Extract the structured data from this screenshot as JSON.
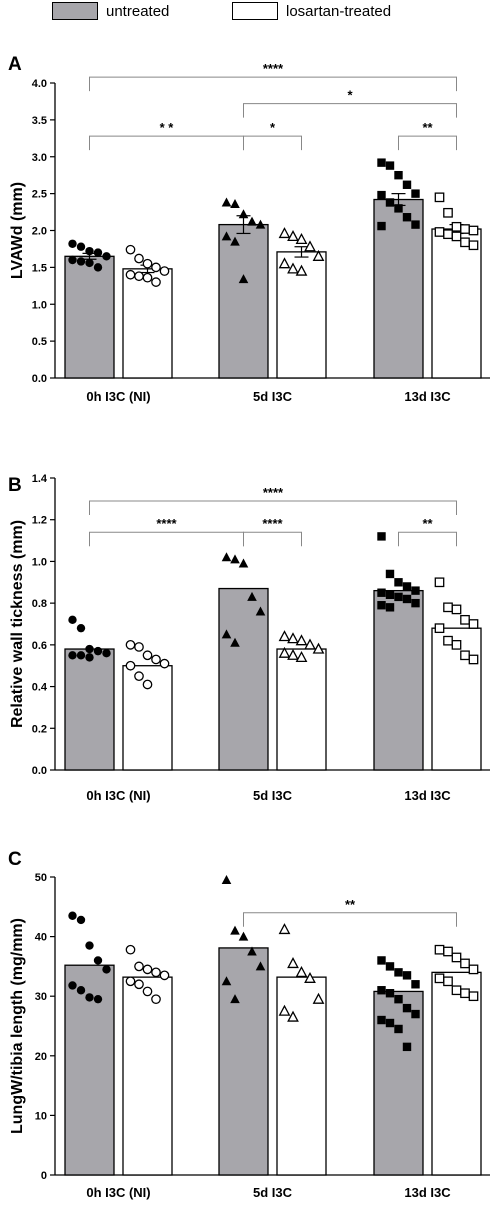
{
  "legend": {
    "items": [
      {
        "label": "untreated",
        "color": "#a7a6ab"
      },
      {
        "label": "losartan-treated",
        "color": "#ffffff"
      }
    ]
  },
  "chart_data": [
    {
      "type": "bar",
      "panel_label": "A",
      "title": "",
      "ylabel": "LVAWd (mm)",
      "xlabel": "",
      "categories": [
        "0h I3C (NI)",
        "5d I3C",
        "13d I3C"
      ],
      "ylim": [
        0,
        4.0
      ],
      "yticks": [
        "0.0",
        "0.5",
        "1.0",
        "1.5",
        "2.0",
        "2.5",
        "3.0",
        "3.5",
        "4.0"
      ],
      "grid": false,
      "series": [
        {
          "name": "untreated",
          "color": "#a7a6ab",
          "values": [
            1.65,
            2.08,
            2.42
          ],
          "sem": [
            0.04,
            0.12,
            0.08
          ],
          "markers": [
            "circle",
            "triangle",
            "square"
          ],
          "points": [
            [
              1.82,
              1.78,
              1.72,
              1.7,
              1.65,
              1.6,
              1.58,
              1.56,
              1.5
            ],
            [
              2.38,
              2.36,
              2.22,
              2.12,
              2.08,
              1.92,
              1.85,
              1.34
            ],
            [
              2.92,
              2.88,
              2.75,
              2.62,
              2.5,
              2.48,
              2.38,
              2.3,
              2.18,
              2.08,
              2.06
            ]
          ]
        },
        {
          "name": "losartan-treated",
          "color": "#ffffff",
          "values": [
            1.48,
            1.71,
            2.02
          ],
          "sem": [
            0.05,
            0.07,
            0.06
          ],
          "markers": [
            "circle",
            "triangle",
            "square"
          ],
          "points": [
            [
              1.74,
              1.62,
              1.55,
              1.5,
              1.45,
              1.4,
              1.38,
              1.36,
              1.3
            ],
            [
              1.96,
              1.92,
              1.88,
              1.78,
              1.65,
              1.55,
              1.48,
              1.45
            ],
            [
              2.45,
              2.24,
              2.05,
              2.02,
              2.0,
              1.98,
              1.95,
              1.92,
              1.84,
              1.8
            ]
          ]
        }
      ],
      "significance": [
        {
          "from": 0,
          "to": 5,
          "label": "****",
          "level": 4.08
        },
        {
          "from": 2,
          "to": 5,
          "label": "*",
          "level": 3.72
        },
        {
          "from": 0,
          "to": 2,
          "label": "* *",
          "level": 3.28
        },
        {
          "from": 2,
          "to": 3,
          "label": "*",
          "level": 3.28
        },
        {
          "from": 4,
          "to": 5,
          "label": "**",
          "level": 3.28
        }
      ]
    },
    {
      "type": "bar",
      "panel_label": "B",
      "title": "",
      "ylabel": "Relative wall tickness (mm)",
      "xlabel": "",
      "categories": [
        "0h I3C (NI)",
        "5d I3C",
        "13d I3C"
      ],
      "ylim": [
        0,
        1.4
      ],
      "yticks": [
        "0.0",
        "0.2",
        "0.4",
        "0.6",
        "0.8",
        "1.0",
        "1.2",
        "1.4"
      ],
      "grid": false,
      "series": [
        {
          "name": "untreated",
          "color": "#a7a6ab",
          "values": [
            0.58,
            0.87,
            0.86
          ],
          "sem": [
            0,
            0,
            0
          ],
          "markers": [
            "circle",
            "triangle",
            "square"
          ],
          "points": [
            [
              0.72,
              0.68,
              0.58,
              0.57,
              0.56,
              0.55,
              0.55,
              0.54
            ],
            [
              1.02,
              1.01,
              0.99,
              0.83,
              0.76,
              0.65,
              0.61
            ],
            [
              1.12,
              0.94,
              0.9,
              0.88,
              0.86,
              0.85,
              0.84,
              0.83,
              0.82,
              0.8,
              0.79,
              0.78
            ]
          ]
        },
        {
          "name": "losartan-treated",
          "color": "#ffffff",
          "values": [
            0.5,
            0.58,
            0.68
          ],
          "sem": [
            0,
            0,
            0
          ],
          "markers": [
            "circle",
            "triangle",
            "square"
          ],
          "points": [
            [
              0.6,
              0.59,
              0.55,
              0.53,
              0.51,
              0.5,
              0.45,
              0.41
            ],
            [
              0.64,
              0.63,
              0.62,
              0.6,
              0.58,
              0.56,
              0.55,
              0.54
            ],
            [
              0.9,
              0.78,
              0.77,
              0.72,
              0.7,
              0.68,
              0.62,
              0.6,
              0.55,
              0.53
            ]
          ]
        }
      ],
      "significance": [
        {
          "from": 0,
          "to": 5,
          "label": "****",
          "level": 1.29
        },
        {
          "from": 0,
          "to": 2,
          "label": "****",
          "level": 1.14
        },
        {
          "from": 2,
          "to": 3,
          "label": "****",
          "level": 1.14
        },
        {
          "from": 4,
          "to": 5,
          "label": "**",
          "level": 1.14
        }
      ]
    },
    {
      "type": "bar",
      "panel_label": "C",
      "title": "",
      "ylabel": "LungW/tibia length (mg/mm)",
      "xlabel": "",
      "categories": [
        "0h I3C (NI)",
        "5d I3C",
        "13d I3C"
      ],
      "ylim": [
        0,
        50
      ],
      "yticks": [
        "0",
        "10",
        "20",
        "30",
        "40",
        "50"
      ],
      "grid": false,
      "series": [
        {
          "name": "untreated",
          "color": "#a7a6ab",
          "values": [
            35.2,
            38.1,
            30.8
          ],
          "sem": [
            0,
            0,
            0
          ],
          "markers": [
            "circle",
            "triangle",
            "square"
          ],
          "points": [
            [
              43.5,
              42.8,
              38.5,
              36.0,
              34.5,
              31.8,
              31.0,
              29.8,
              29.5
            ],
            [
              49.5,
              41.0,
              40.0,
              37.5,
              35.0,
              32.5,
              29.5
            ],
            [
              36.0,
              35.0,
              34.0,
              33.5,
              32.0,
              31.0,
              30.5,
              29.5,
              28.0,
              27.0,
              26.0,
              25.5,
              24.5,
              21.5
            ]
          ]
        },
        {
          "name": "losartan-treated",
          "color": "#ffffff",
          "values": [
            33.2,
            33.2,
            34.0
          ],
          "sem": [
            0,
            0,
            0
          ],
          "markers": [
            "circle",
            "triangle",
            "square"
          ],
          "points": [
            [
              37.8,
              35.0,
              34.5,
              34.0,
              33.5,
              32.5,
              32.0,
              30.8,
              29.5
            ],
            [
              41.2,
              35.5,
              34.0,
              33.0,
              29.5,
              27.5,
              26.5
            ],
            [
              37.8,
              37.5,
              36.5,
              35.5,
              34.5,
              33.0,
              32.5,
              31.0,
              30.5,
              30.0
            ]
          ]
        }
      ],
      "significance": [
        {
          "from": 2,
          "to": 5,
          "label": "**",
          "level": 44.0
        }
      ]
    }
  ]
}
